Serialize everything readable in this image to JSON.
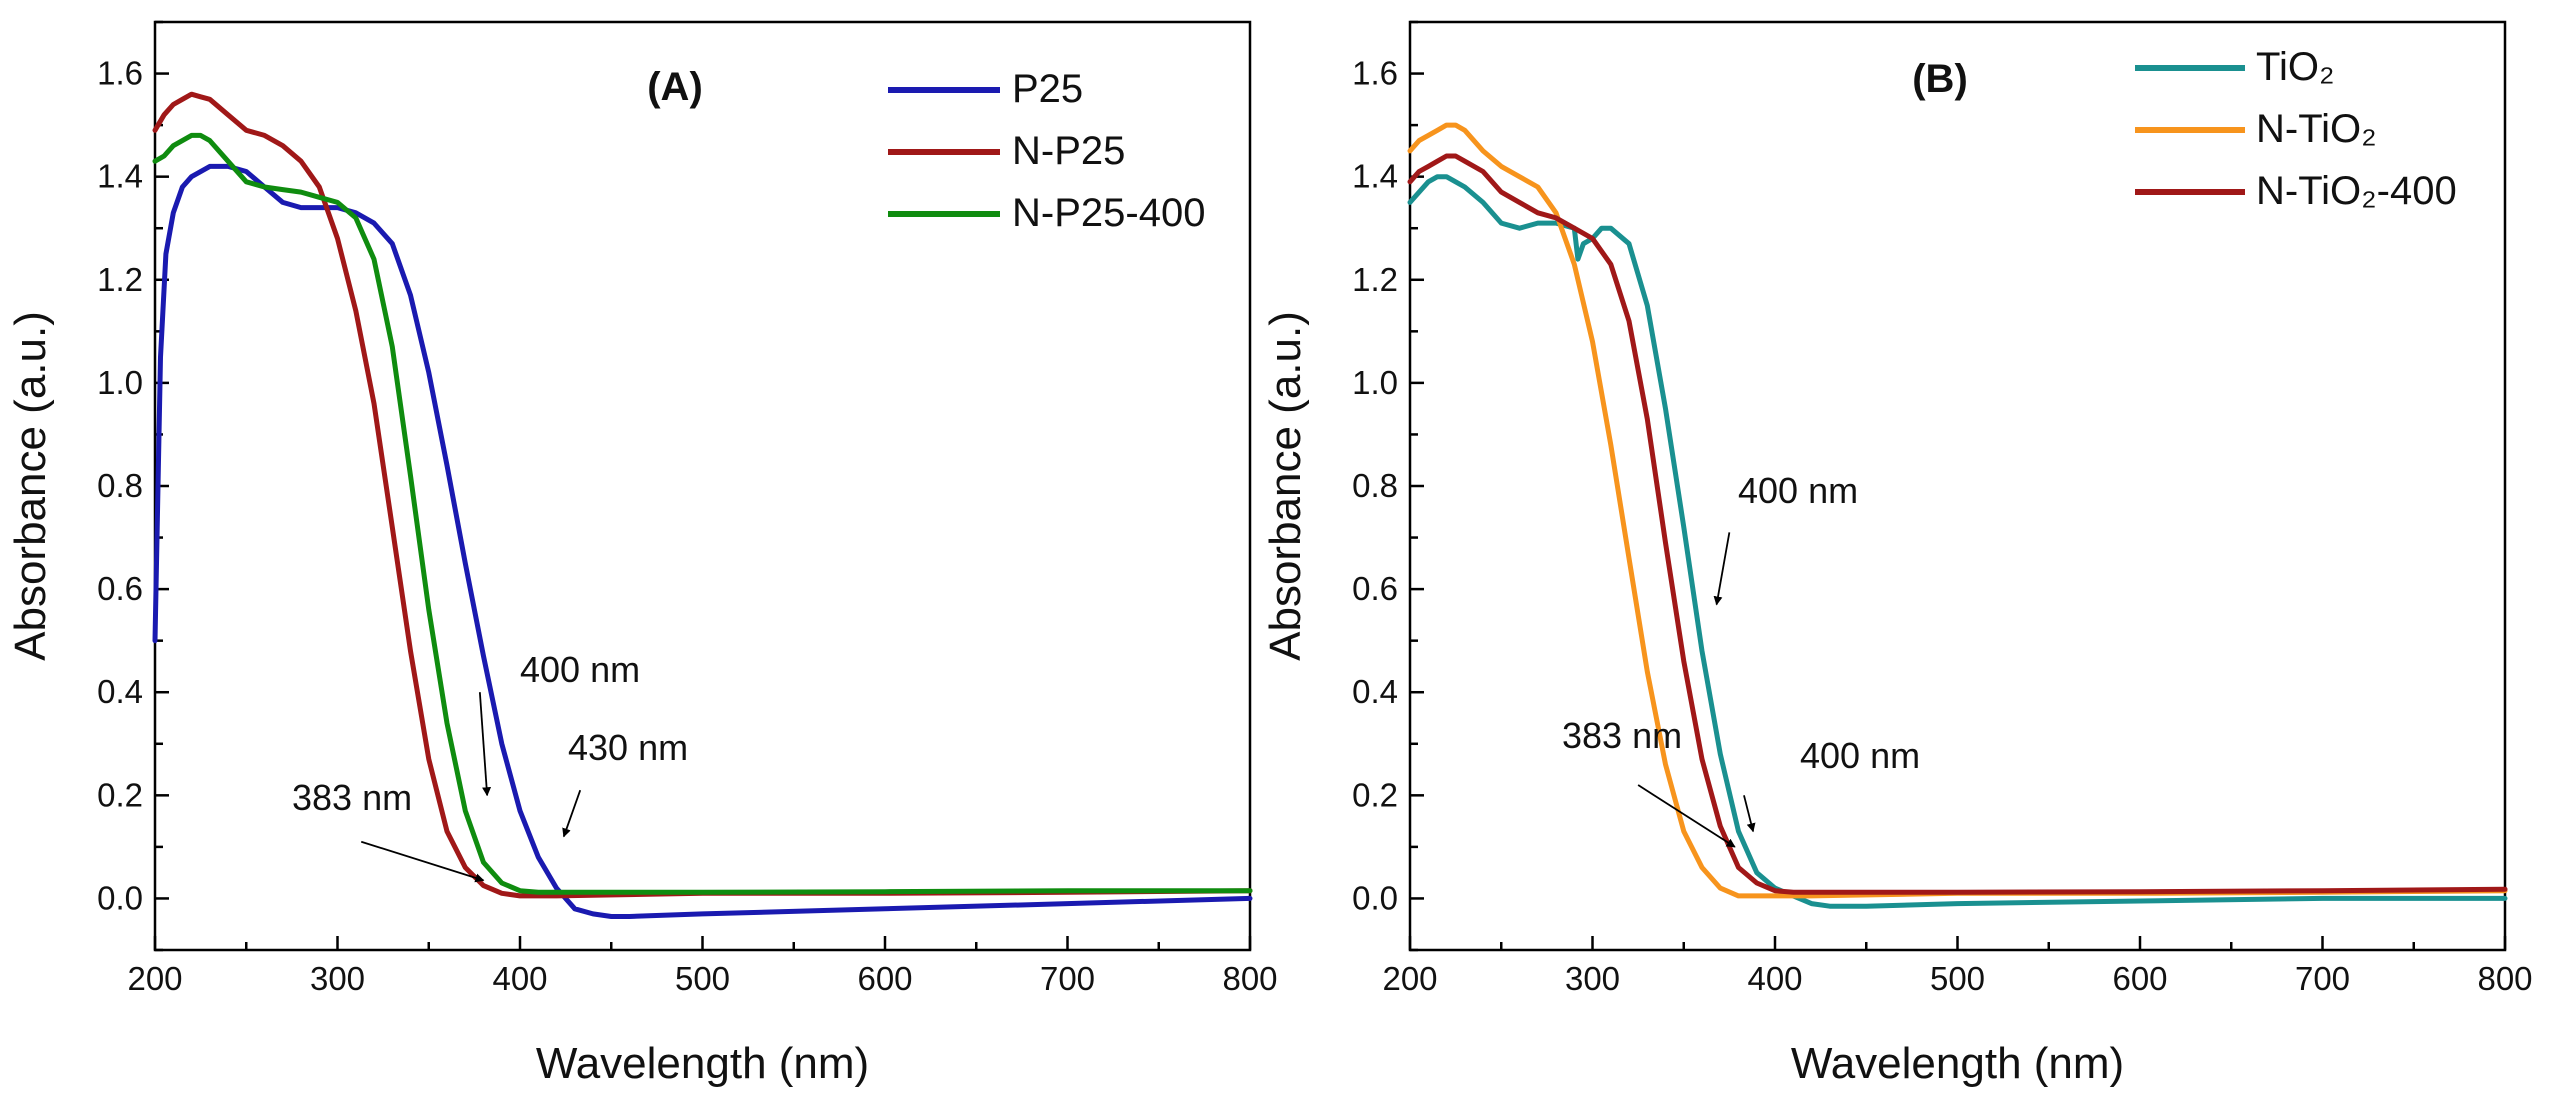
{
  "chart_data": [
    {
      "type": "line",
      "panel_label": "(A)",
      "xlabel": "Wavelength (nm)",
      "ylabel": "Absorbance (a.u.)",
      "xlim": [
        200,
        800
      ],
      "ylim": [
        -0.1,
        1.7
      ],
      "xticks": [
        200,
        300,
        400,
        500,
        600,
        700,
        800
      ],
      "yticks": [
        0.0,
        0.2,
        0.4,
        0.6,
        0.8,
        1.0,
        1.2,
        1.4,
        1.6
      ],
      "legend_position": "top-right",
      "series": [
        {
          "name": "P25",
          "color": "#1a1ab0",
          "x": [
            200,
            203,
            206,
            210,
            215,
            220,
            230,
            240,
            250,
            260,
            270,
            280,
            290,
            300,
            310,
            320,
            330,
            340,
            350,
            360,
            370,
            380,
            390,
            400,
            410,
            420,
            430,
            440,
            450,
            460,
            500,
            600,
            700,
            800
          ],
          "y": [
            0.5,
            1.05,
            1.25,
            1.33,
            1.38,
            1.4,
            1.42,
            1.42,
            1.41,
            1.38,
            1.35,
            1.34,
            1.34,
            1.34,
            1.33,
            1.31,
            1.27,
            1.17,
            1.02,
            0.84,
            0.65,
            0.47,
            0.3,
            0.17,
            0.08,
            0.02,
            -0.02,
            -0.03,
            -0.035,
            -0.035,
            -0.03,
            -0.02,
            -0.01,
            0.0
          ]
        },
        {
          "name": "N-P25",
          "color": "#a01818",
          "x": [
            200,
            205,
            210,
            215,
            220,
            225,
            230,
            240,
            250,
            260,
            270,
            280,
            290,
            300,
            310,
            320,
            330,
            340,
            350,
            360,
            370,
            380,
            390,
            400,
            410,
            420,
            500,
            600,
            700,
            800
          ],
          "y": [
            1.49,
            1.52,
            1.54,
            1.55,
            1.56,
            1.555,
            1.55,
            1.52,
            1.49,
            1.48,
            1.46,
            1.43,
            1.38,
            1.28,
            1.14,
            0.96,
            0.72,
            0.48,
            0.27,
            0.13,
            0.06,
            0.025,
            0.01,
            0.005,
            0.005,
            0.005,
            0.01,
            0.01,
            0.012,
            0.015
          ]
        },
        {
          "name": "N-P25-400",
          "color": "#0f8c0f",
          "x": [
            200,
            205,
            210,
            215,
            220,
            225,
            230,
            240,
            250,
            260,
            270,
            280,
            290,
            300,
            310,
            320,
            330,
            340,
            350,
            360,
            370,
            380,
            390,
            400,
            410,
            420,
            500,
            600,
            700,
            800
          ],
          "y": [
            1.43,
            1.44,
            1.46,
            1.47,
            1.48,
            1.48,
            1.47,
            1.43,
            1.39,
            1.38,
            1.375,
            1.37,
            1.36,
            1.35,
            1.32,
            1.24,
            1.07,
            0.82,
            0.56,
            0.34,
            0.17,
            0.07,
            0.03,
            0.015,
            0.012,
            0.012,
            0.012,
            0.013,
            0.015,
            0.015
          ]
        }
      ],
      "annotations": [
        {
          "text": "400 nm",
          "arrow_from": [
            378,
            0.4
          ],
          "arrow_to": [
            382,
            0.2
          ]
        },
        {
          "text": "430 nm",
          "arrow_from": [
            433,
            0.21
          ],
          "arrow_to": [
            424,
            0.12
          ]
        },
        {
          "text": "383 nm",
          "arrow_from": [
            313,
            0.11
          ],
          "arrow_to": [
            380,
            0.035
          ]
        }
      ]
    },
    {
      "type": "line",
      "panel_label": "(B)",
      "xlabel": "Wavelength (nm)",
      "ylabel": "Absorbance (a.u.)",
      "xlim": [
        200,
        800
      ],
      "ylim": [
        -0.1,
        1.7
      ],
      "xticks": [
        200,
        300,
        400,
        500,
        600,
        700,
        800
      ],
      "yticks": [
        0.0,
        0.2,
        0.4,
        0.6,
        0.8,
        1.0,
        1.2,
        1.4,
        1.6
      ],
      "legend_position": "top-right",
      "series": [
        {
          "name": "TiO₂",
          "color": "#1a9090",
          "x": [
            200,
            205,
            210,
            215,
            220,
            225,
            230,
            240,
            250,
            260,
            270,
            280,
            290,
            292,
            295,
            300,
            305,
            310,
            320,
            330,
            340,
            350,
            360,
            370,
            380,
            390,
            400,
            410,
            420,
            430,
            450,
            500,
            600,
            700,
            800
          ],
          "y": [
            1.35,
            1.37,
            1.39,
            1.4,
            1.4,
            1.39,
            1.38,
            1.35,
            1.31,
            1.3,
            1.31,
            1.31,
            1.3,
            1.24,
            1.27,
            1.28,
            1.3,
            1.3,
            1.27,
            1.15,
            0.95,
            0.72,
            0.48,
            0.28,
            0.13,
            0.05,
            0.02,
            0.005,
            -0.01,
            -0.015,
            -0.015,
            -0.01,
            -0.005,
            0.0,
            0.0
          ]
        },
        {
          "name": "N-TiO₂",
          "color": "#f7941d",
          "x": [
            200,
            205,
            210,
            215,
            220,
            225,
            230,
            240,
            250,
            260,
            270,
            280,
            290,
            300,
            310,
            320,
            330,
            340,
            350,
            360,
            370,
            380,
            390,
            400,
            410,
            420,
            500,
            600,
            700,
            800
          ],
          "y": [
            1.45,
            1.47,
            1.48,
            1.49,
            1.5,
            1.5,
            1.49,
            1.45,
            1.42,
            1.4,
            1.38,
            1.33,
            1.23,
            1.08,
            0.88,
            0.66,
            0.44,
            0.26,
            0.13,
            0.06,
            0.02,
            0.005,
            0.005,
            0.005,
            0.005,
            0.005,
            0.01,
            0.01,
            0.012,
            0.015
          ]
        },
        {
          "name": "N-TiO₂-400",
          "color": "#a01818",
          "x": [
            200,
            205,
            210,
            215,
            220,
            225,
            230,
            240,
            250,
            260,
            270,
            280,
            290,
            300,
            310,
            320,
            330,
            340,
            350,
            360,
            370,
            380,
            390,
            400,
            410,
            420,
            500,
            600,
            700,
            800
          ],
          "y": [
            1.39,
            1.41,
            1.42,
            1.43,
            1.44,
            1.44,
            1.43,
            1.41,
            1.37,
            1.35,
            1.33,
            1.32,
            1.3,
            1.28,
            1.23,
            1.12,
            0.93,
            0.69,
            0.46,
            0.27,
            0.14,
            0.06,
            0.03,
            0.015,
            0.012,
            0.012,
            0.012,
            0.013,
            0.015,
            0.018
          ]
        }
      ],
      "annotations": [
        {
          "text": "400 nm",
          "arrow_from": [
            375,
            0.71
          ],
          "arrow_to": [
            368,
            0.57
          ]
        },
        {
          "text": "383 nm",
          "arrow_from": [
            325,
            0.22
          ],
          "arrow_to": [
            378,
            0.1
          ]
        },
        {
          "text": "400 nm",
          "arrow_from": [
            383,
            0.2
          ],
          "arrow_to": [
            388,
            0.13
          ]
        }
      ]
    }
  ]
}
